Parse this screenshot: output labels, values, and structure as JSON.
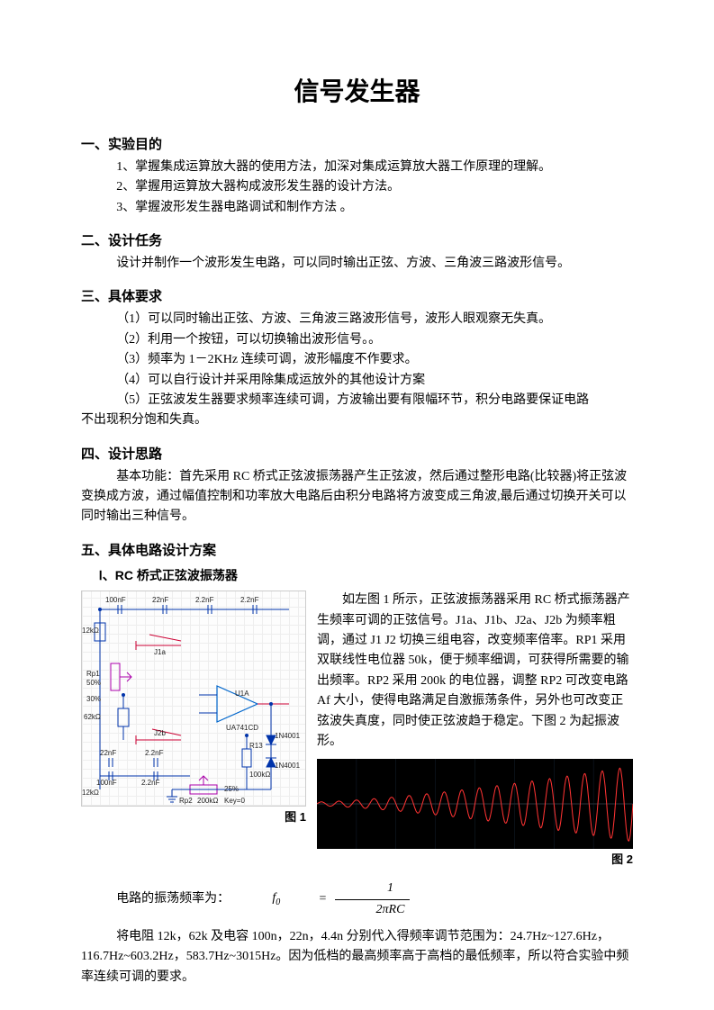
{
  "title": "信号发生器",
  "sections": {
    "s1": {
      "heading": "一、实验目的",
      "items": [
        "1、掌握集成运算放大器的使用方法，加深对集成运算放大器工作原理的理解。",
        "2、掌握用运算放大器构成波形发生器的设计方法。",
        "3、掌握波形发生器电路调试和制作方法 。"
      ]
    },
    "s2": {
      "heading": "二、设计任务",
      "body": "设计并制作一个波形发生电路，可以同时输出正弦、方波、三角波三路波形信号。"
    },
    "s3": {
      "heading": "三、具体要求",
      "items": [
        "（1）可以同时输出正弦、方波、三角波三路波形信号，波形人眼观察无失真。",
        "（2）利用一个按钮，可以切换输出波形信号。。",
        "（3）频率为 1－2KHz 连续可调，波形幅度不作要求。",
        "（4）可以自行设计并采用除集成运放外的其他设计方案",
        "（5）正弦波发生器要求频率连续可调，方波输出要有限幅环节，积分电路要保证电路"
      ],
      "trailing": "不出现积分饱和失真。"
    },
    "s4": {
      "heading": "四、设计思路",
      "body": "基本功能：首先采用 RC 桥式正弦波振荡器产生正弦波，然后通过整形电路(比较器)将正弦波变换成方波，通过幅值控制和功率放大电路后由积分电路将方波变成三角波,最后通过切换开关可以同时输出三种信号。"
    },
    "s5": {
      "heading": "五、具体电路设计方案",
      "sub": "Ⅰ、RC 桥式正弦波振荡器",
      "para": "如左图 1 所示，正弦波振荡器采用 RC 桥式振荡器产生频率可调的正弦信号。J1a、J1b、J2a、J2b 为频率粗调，通过 J1 J2 切换三组电容，改变频率倍率。RP1 采用双联线性电位器 50k，便于频率细调，可获得所需要的输出频率。RP2 采用 200k 的电位器，调整 RP2 可改变电路 Af 大小，使得电路满足自激振荡条件，另外也可改变正弦波失真度，同时使正弦波趋于稳定。下图 2 为起振波形。",
      "fig1": "图 1",
      "fig2": "图 2",
      "formula_label": "电路的振荡频率为：",
      "f0": "f",
      "f0_sub": "0",
      "eq": "=",
      "num": "1",
      "den": "2πRC",
      "tail1": "将电阻 12k，62k 及电容 100n，22n，4.4n 分别代入得频率调节范围为：24.7Hz~127.6Hz，",
      "tail2": "116.7Hz~603.2Hz，583.7Hz~3015Hz。因为低档的最高频率高于高档的最低频率，所以符合实验中频率连续可调的要求。"
    }
  },
  "circuit": {
    "caps_top": [
      "100nF",
      "22nF",
      "2.2nF",
      "2.2nF"
    ],
    "r_left": "12kΩ",
    "sw1": "J1a",
    "rp1a": "Rp1",
    "pct1": "50%",
    "pct2": "30%",
    "r62": "62kΩ",
    "sw2": "J2b",
    "opamp": "U1A",
    "chip": "UA741CD",
    "caps_bot": [
      "22nF",
      "2.2nF"
    ],
    "caps_bot2": [
      "100nF",
      "2.2nF"
    ],
    "diode1": "1N4001",
    "diode2": "1N4001",
    "r13": "R13",
    "r13v": "100kΩ",
    "r12k": "12kΩ",
    "rp2": "Rp2",
    "rp2v": "200kΩ",
    "pct3": "25%",
    "key": "Key=0",
    "colors": {
      "wire_blue": "#0033aa",
      "wire_red": "#cc0033",
      "wire_mag": "#aa00aa",
      "opamp": "#0066cc",
      "grid": "#eeeeee"
    }
  },
  "scope": {
    "bg": "#000000",
    "wave_color": "#ff3333",
    "axis_color": "#556677",
    "cycles": 18,
    "envelope_start": 0.05,
    "envelope_end": 1.0
  }
}
